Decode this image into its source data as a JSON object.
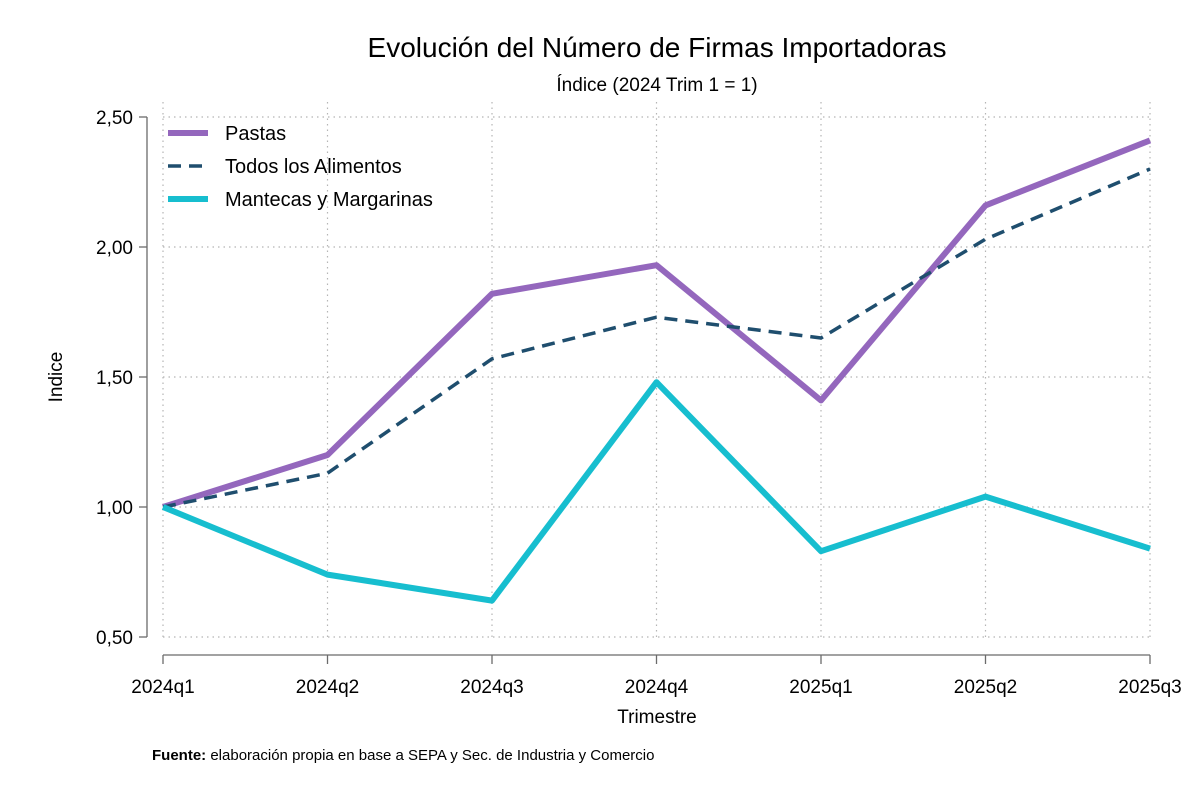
{
  "chart_data": {
    "type": "line",
    "title": "Evolución del Número de Firmas Importadoras",
    "subtitle": "Índice (2024 Trim 1 = 1)",
    "xlabel": "Trimestre",
    "ylabel": "Indice",
    "categories": [
      "2024q1",
      "2024q2",
      "2024q3",
      "2024q4",
      "2025q1",
      "2025q2",
      "2025q3"
    ],
    "ylim": [
      0.5,
      2.5
    ],
    "yticks": [
      0.5,
      1.0,
      1.5,
      2.0,
      2.5
    ],
    "ytick_labels": [
      "0,50",
      "1,00",
      "1,50",
      "2,00",
      "2,50"
    ],
    "grid": "dotted",
    "legend_position": "top-left",
    "series": [
      {
        "name": "Pastas",
        "color": "#9467bd",
        "style": "solid",
        "values": [
          1.0,
          1.2,
          1.82,
          1.93,
          1.41,
          2.16,
          2.41
        ]
      },
      {
        "name": "Todos los Alimentos",
        "color": "#1f4e6e",
        "style": "dashed",
        "values": [
          1.0,
          1.13,
          1.57,
          1.73,
          1.65,
          2.03,
          2.3
        ]
      },
      {
        "name": "Mantecas y Margarinas",
        "color": "#17becf",
        "style": "solid",
        "values": [
          1.0,
          0.74,
          0.64,
          1.48,
          0.83,
          1.04,
          0.84
        ]
      }
    ]
  },
  "source": {
    "label": "Fuente:",
    "text": " elaboración propia en base a SEPA y Sec. de Industria y Comercio"
  }
}
